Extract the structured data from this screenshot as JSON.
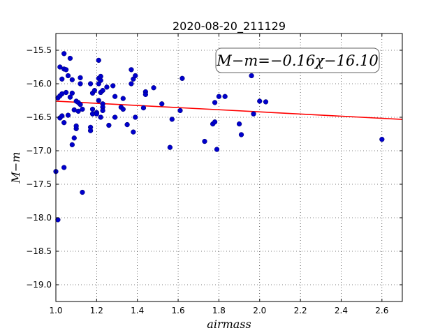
{
  "chart_data": {
    "type": "scatter",
    "title": "2020-08-20_211129",
    "xlabel": "airmass",
    "ylabel": "M−m",
    "xlim": [
      1.0,
      2.7
    ],
    "ylim": [
      -19.25,
      -15.25
    ],
    "y_inverted": true,
    "grid": true,
    "x_ticks": [
      1.0,
      1.2,
      1.4,
      1.6,
      1.8,
      2.0,
      2.2,
      2.4,
      2.6
    ],
    "x_tick_labels": [
      "1.0",
      "1.2",
      "1.4",
      "1.6",
      "1.8",
      "2.0",
      "2.2",
      "2.4",
      "2.6"
    ],
    "y_ticks": [
      -15.5,
      -16.0,
      -16.5,
      -17.0,
      -17.5,
      -18.0,
      -18.5,
      -19.0
    ],
    "y_tick_labels": [
      "−15.5",
      "−16.0",
      "−16.5",
      "−17.0",
      "−17.5",
      "−18.0",
      "−18.5",
      "−19.0"
    ],
    "annotation": "M−m=−0.16χ−16.10",
    "point_color": "#0000cc",
    "fit_color": "#ff0000",
    "fit": {
      "slope": -0.16,
      "intercept": -16.1
    },
    "points": [
      [
        1.0,
        -17.31
      ],
      [
        1.01,
        -18.03
      ],
      [
        1.01,
        -16.21
      ],
      [
        1.02,
        -15.75
      ],
      [
        1.02,
        -16.18
      ],
      [
        1.02,
        -16.51
      ],
      [
        1.03,
        -15.93
      ],
      [
        1.03,
        -16.15
      ],
      [
        1.03,
        -16.48
      ],
      [
        1.04,
        -15.78
      ],
      [
        1.04,
        -15.55
      ],
      [
        1.04,
        -16.58
      ],
      [
        1.04,
        -17.25
      ],
      [
        1.05,
        -16.13
      ],
      [
        1.05,
        -15.79
      ],
      [
        1.06,
        -15.88
      ],
      [
        1.06,
        -16.47
      ],
      [
        1.07,
        -16.2
      ],
      [
        1.07,
        -15.62
      ],
      [
        1.08,
        -16.14
      ],
      [
        1.08,
        -16.91
      ],
      [
        1.08,
        -15.94
      ],
      [
        1.09,
        -16.39
      ],
      [
        1.09,
        -16.81
      ],
      [
        1.1,
        -16.26
      ],
      [
        1.1,
        -16.67
      ],
      [
        1.1,
        -16.63
      ],
      [
        1.11,
        -16.28
      ],
      [
        1.11,
        -16.41
      ],
      [
        1.12,
        -15.91
      ],
      [
        1.12,
        -16.0
      ],
      [
        1.12,
        -16.31
      ],
      [
        1.13,
        -16.38
      ],
      [
        1.13,
        -17.62
      ],
      [
        1.17,
        -16.0
      ],
      [
        1.17,
        -16.65
      ],
      [
        1.17,
        -16.7
      ],
      [
        1.18,
        -16.14
      ],
      [
        1.18,
        -16.38
      ],
      [
        1.18,
        -16.45
      ],
      [
        1.19,
        -16.1
      ],
      [
        1.2,
        -16.43
      ],
      [
        1.2,
        -16.45
      ],
      [
        1.21,
        -15.65
      ],
      [
        1.21,
        -15.92
      ],
      [
        1.21,
        -16.0
      ],
      [
        1.21,
        -16.25
      ],
      [
        1.22,
        -15.89
      ],
      [
        1.22,
        -15.95
      ],
      [
        1.22,
        -16.13
      ],
      [
        1.22,
        -16.5
      ],
      [
        1.23,
        -16.1
      ],
      [
        1.23,
        -16.3
      ],
      [
        1.23,
        -16.35
      ],
      [
        1.23,
        -16.4
      ],
      [
        1.25,
        -16.05
      ],
      [
        1.26,
        -16.62
      ],
      [
        1.28,
        -16.03
      ],
      [
        1.29,
        -16.19
      ],
      [
        1.29,
        -16.5
      ],
      [
        1.32,
        -16.35
      ],
      [
        1.33,
        -16.22
      ],
      [
        1.33,
        -16.38
      ],
      [
        1.35,
        -16.61
      ],
      [
        1.37,
        -15.79
      ],
      [
        1.37,
        -16.0
      ],
      [
        1.38,
        -15.93
      ],
      [
        1.38,
        -16.72
      ],
      [
        1.39,
        -16.5
      ],
      [
        1.39,
        -15.88
      ],
      [
        1.43,
        -16.36
      ],
      [
        1.44,
        -16.12
      ],
      [
        1.44,
        -16.16
      ],
      [
        1.48,
        -16.06
      ],
      [
        1.52,
        -16.3
      ],
      [
        1.56,
        -16.95
      ],
      [
        1.57,
        -16.53
      ],
      [
        1.61,
        -16.4
      ],
      [
        1.62,
        -15.92
      ],
      [
        1.73,
        -16.86
      ],
      [
        1.77,
        -16.6
      ],
      [
        1.78,
        -16.28
      ],
      [
        1.78,
        -16.57
      ],
      [
        1.79,
        -16.98
      ],
      [
        1.8,
        -16.19
      ],
      [
        1.83,
        -16.19
      ],
      [
        1.9,
        -16.6
      ],
      [
        1.91,
        -16.76
      ],
      [
        1.96,
        -15.88
      ],
      [
        1.97,
        -16.45
      ],
      [
        2.0,
        -16.26
      ],
      [
        2.03,
        -16.27
      ],
      [
        2.6,
        -16.83
      ]
    ]
  }
}
